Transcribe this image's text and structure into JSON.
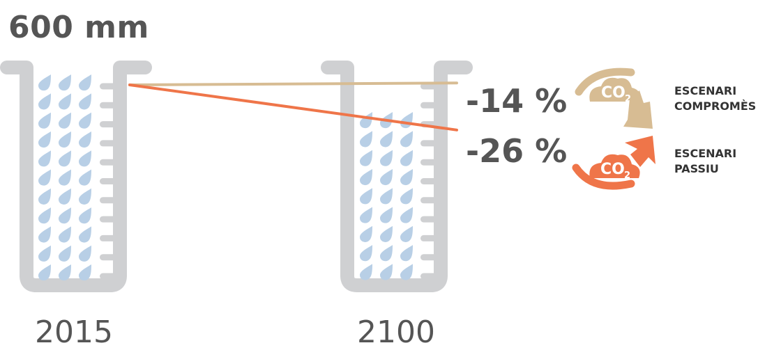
{
  "header": {
    "title": "600 mm"
  },
  "years": {
    "start": "2015",
    "end": "2100"
  },
  "scenarios": [
    {
      "change": "-14 %",
      "label_line1": "ESCENARI",
      "label_line2": "COMPROMÈS",
      "color": "#d7bc93",
      "level_fraction": 0.86
    },
    {
      "change": "-26 %",
      "label_line1": "ESCENARI",
      "label_line2": "PASSIU",
      "color": "#ef7549",
      "level_fraction": 0.74
    }
  ],
  "co2": {
    "main": "CO",
    "sub": "2"
  },
  "colors": {
    "beaker": "#cfd0d2",
    "drop": "#b8cfe6",
    "text": "#555555"
  }
}
